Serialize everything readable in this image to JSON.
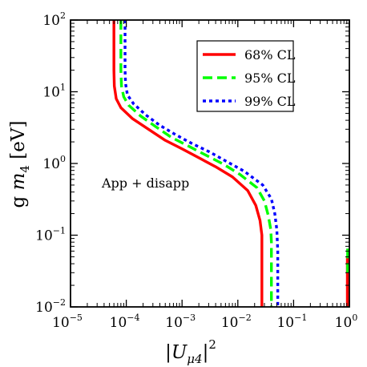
{
  "chart_data": {
    "type": "line",
    "x_scale": "log",
    "y_scale": "log",
    "xlim": [
      1e-05,
      1
    ],
    "ylim": [
      0.01,
      100
    ],
    "xlabel": "|U_{μ4}|^2",
    "ylabel": "g m_4 [eV]",
    "annotation": "App + disapp",
    "legend_position": "top-right",
    "grid": false,
    "x_ticks": [
      {
        "base": "10",
        "exp": "−5",
        "value": 1e-05
      },
      {
        "base": "10",
        "exp": "−4",
        "value": 0.0001
      },
      {
        "base": "10",
        "exp": "−3",
        "value": 0.001
      },
      {
        "base": "10",
        "exp": "−2",
        "value": 0.01
      },
      {
        "base": "10",
        "exp": "−1",
        "value": 0.1
      },
      {
        "base": "10",
        "exp": "0",
        "value": 1
      }
    ],
    "y_ticks": [
      {
        "base": "10",
        "exp": "−2",
        "value": 0.01
      },
      {
        "base": "10",
        "exp": "−1",
        "value": 0.1
      },
      {
        "base": "10",
        "exp": "0",
        "value": 1
      },
      {
        "base": "10",
        "exp": "1",
        "value": 10
      },
      {
        "base": "10",
        "exp": "2",
        "value": 100
      }
    ],
    "series": [
      {
        "name": "68% CL",
        "color": "#ff0000",
        "dash": "solid",
        "points": [
          [
            6e-05,
            100
          ],
          [
            6e-05,
            20
          ],
          [
            6.1e-05,
            12
          ],
          [
            6.6e-05,
            8
          ],
          [
            8e-05,
            6
          ],
          [
            0.00013,
            4.2
          ],
          [
            0.00025,
            3
          ],
          [
            0.0005,
            2.1
          ],
          [
            0.001,
            1.6
          ],
          [
            0.002,
            1.2
          ],
          [
            0.004,
            0.9
          ],
          [
            0.008,
            0.65
          ],
          [
            0.015,
            0.42
          ],
          [
            0.021,
            0.26
          ],
          [
            0.025,
            0.16
          ],
          [
            0.027,
            0.1
          ],
          [
            0.027,
            0.01
          ]
        ],
        "points2": [
          [
            0.92,
            0.01
          ],
          [
            0.92,
            0.05
          ]
        ]
      },
      {
        "name": "95% CL",
        "color": "#00ff00",
        "dash": "dashed",
        "points": [
          [
            8e-05,
            100
          ],
          [
            8e-05,
            20
          ],
          [
            8.2e-05,
            12
          ],
          [
            9e-05,
            8.5
          ],
          [
            0.00011,
            6.5
          ],
          [
            0.00018,
            4.6
          ],
          [
            0.00033,
            3.3
          ],
          [
            0.00065,
            2.3
          ],
          [
            0.0013,
            1.75
          ],
          [
            0.0027,
            1.3
          ],
          [
            0.0055,
            0.98
          ],
          [
            0.011,
            0.7
          ],
          [
            0.022,
            0.46
          ],
          [
            0.03,
            0.3
          ],
          [
            0.035,
            0.19
          ],
          [
            0.039,
            0.12
          ],
          [
            0.04,
            0.08
          ],
          [
            0.04,
            0.01
          ]
        ],
        "points2": [
          [
            0.93,
            0.03
          ],
          [
            0.93,
            0.065
          ]
        ]
      },
      {
        "name": "99% CL",
        "color": "#0000ff",
        "dash": "dotted",
        "points": [
          [
            9.5e-05,
            100
          ],
          [
            9.5e-05,
            20
          ],
          [
            9.7e-05,
            13
          ],
          [
            0.000105,
            9
          ],
          [
            0.000135,
            6.8
          ],
          [
            0.00022,
            4.8
          ],
          [
            0.0004,
            3.4
          ],
          [
            0.00078,
            2.5
          ],
          [
            0.0015,
            1.9
          ],
          [
            0.0031,
            1.45
          ],
          [
            0.0065,
            1.05
          ],
          [
            0.013,
            0.78
          ],
          [
            0.028,
            0.5
          ],
          [
            0.04,
            0.32
          ],
          [
            0.046,
            0.2
          ],
          [
            0.05,
            0.12
          ],
          [
            0.052,
            0.06
          ],
          [
            0.052,
            0.01
          ]
        ]
      }
    ]
  }
}
